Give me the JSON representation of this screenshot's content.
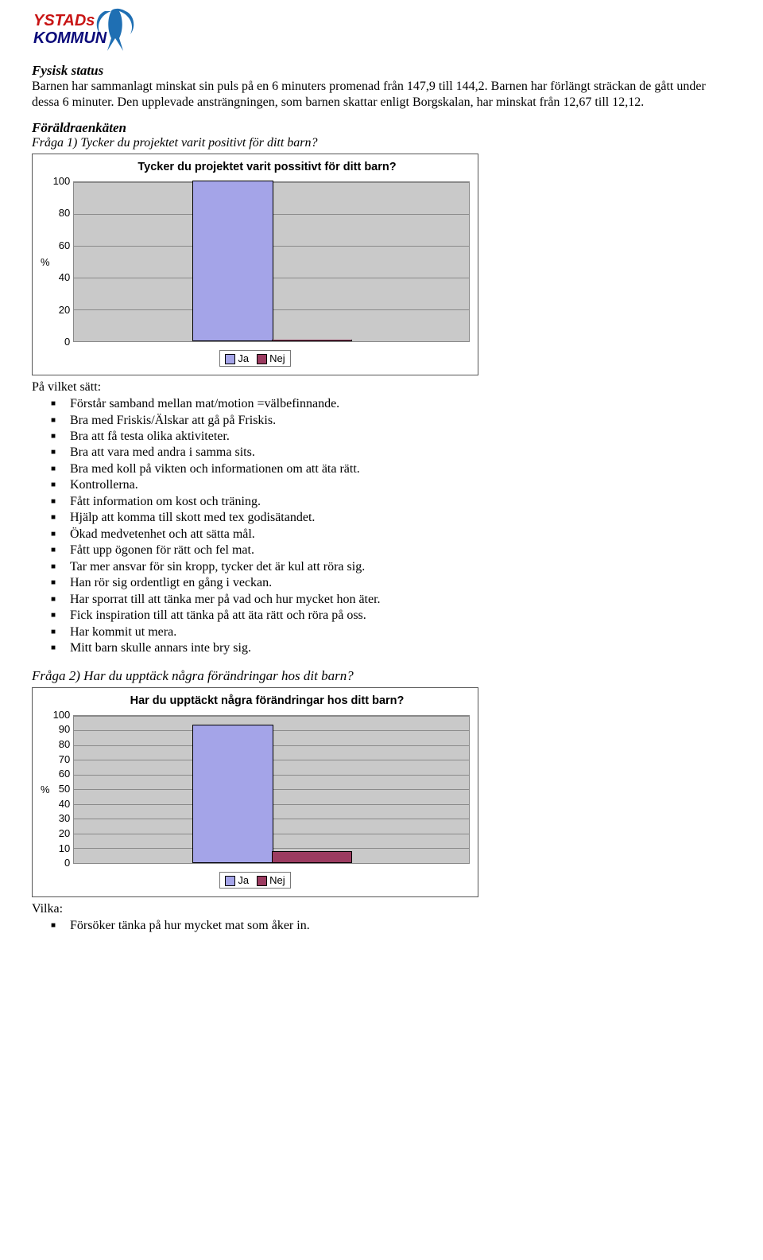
{
  "logo": {
    "text_top": "YSTADs",
    "text_bottom": "KOMMUN",
    "top_color": "#c81414",
    "bottom_color": "#0a0a7a",
    "icon_color": "#1f6fb3"
  },
  "heading1": "Fysisk status",
  "para1": "Barnen har sammanlagt minskat sin puls på en 6 minuters promenad från 147,9 till 144,2. Barnen har förlängt sträckan de gått under dessa 6 minuter. Den upplevade ansträngningen, som barnen skattar enligt Borgskalan, har minskat från 12,67 till 12,12.",
  "survey_heading": "Föräldraenkäten",
  "q1": "Fråga 1) Tycker du projektet varit positivt för ditt barn?",
  "chart1": {
    "title": "Tycker du projektet varit possitivt för ditt barn?",
    "ylabel": "%",
    "ylim": [
      0,
      100
    ],
    "ticks": [
      "100",
      "80",
      "60",
      "40",
      "20",
      "0"
    ],
    "bg": "#c9c9c9",
    "grid_color": "#8a8a8a",
    "bars": [
      {
        "value": 100,
        "color": "#a4a4e8",
        "left_pct": 30,
        "width_pct": 20
      },
      {
        "value": 0,
        "color": "#9b3b60",
        "left_pct": 50,
        "width_pct": 20
      }
    ],
    "legend": [
      {
        "label": "Ja",
        "color": "#a4a4e8"
      },
      {
        "label": "Nej",
        "color": "#9b3b60"
      }
    ]
  },
  "bullets_intro": "På vilket sätt:",
  "bullets1": [
    "Förstår samband mellan mat/motion =välbefinnande.",
    "Bra med Friskis/Älskar att gå på Friskis.",
    "Bra att få testa olika aktiviteter.",
    "Bra att vara med andra i samma sits.",
    "Bra med koll på vikten och informationen om att äta rätt.",
    "Kontrollerna.",
    "Fått information om kost och träning.",
    "Hjälp att komma till skott med tex godisätandet.",
    "Ökad medvetenhet och att sätta mål.",
    "Fått upp ögonen för rätt och fel mat.",
    "Tar mer ansvar för sin kropp, tycker det är kul att röra sig.",
    "Han rör sig ordentligt en gång i veckan.",
    "Har sporrat till att tänka mer på vad och hur mycket hon äter.",
    "Fick inspiration till att tänka på att äta rätt och röra på oss.",
    "Har kommit ut mera.",
    "Mitt barn skulle annars inte bry sig."
  ],
  "q2": "Fråga 2) Har du upptäck några förändringar hos dit barn?",
  "chart2": {
    "title": "Har du upptäckt några förändringar hos ditt barn?",
    "ylabel": "%",
    "ylim": [
      0,
      100
    ],
    "ticks": [
      "100",
      "90",
      "80",
      "70",
      "60",
      "50",
      "40",
      "30",
      "20",
      "10",
      "0"
    ],
    "bg": "#c9c9c9",
    "grid_color": "#8a8a8a",
    "bars": [
      {
        "value": 93,
        "color": "#a4a4e8",
        "left_pct": 30,
        "width_pct": 20
      },
      {
        "value": 7,
        "color": "#9b3b60",
        "left_pct": 50,
        "width_pct": 20
      }
    ],
    "legend": [
      {
        "label": "Ja",
        "color": "#a4a4e8"
      },
      {
        "label": "Nej",
        "color": "#9b3b60"
      }
    ]
  },
  "bullets2_intro": "Vilka:",
  "bullets2": [
    "Försöker tänka på hur mycket mat som åker in."
  ]
}
